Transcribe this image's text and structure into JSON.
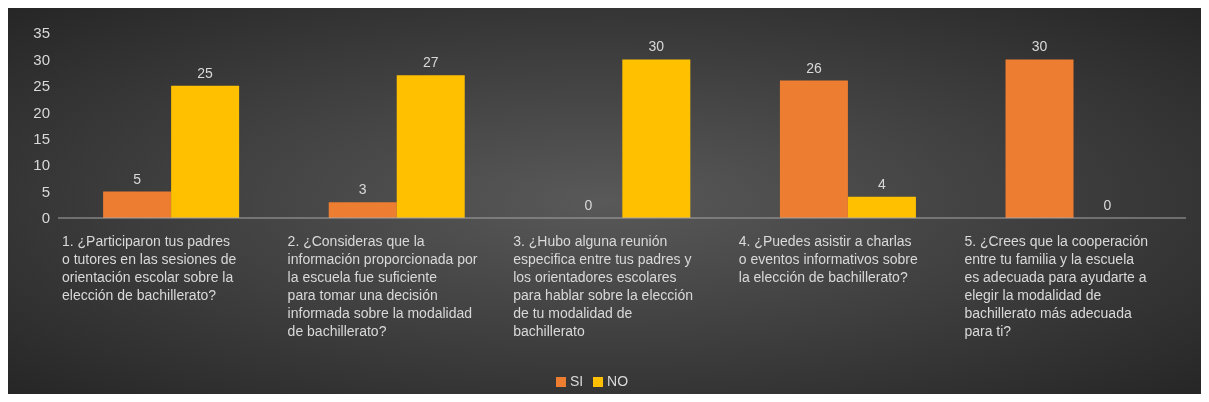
{
  "chart_data": {
    "type": "bar",
    "categories": [
      "1.  ¿Participaron tus padres o tutores en las sesiones de orientación escolar sobre la elección de bachillerato?",
      "2. ¿Consideras que la información proporcionada por la escuela fue suficiente para tomar una decisión informada sobre la modalidad de bachillerato?",
      "3. ¿Hubo alguna reunión especifica entre tus padres y los orientadores escolares para hablar sobre la elección de tu modalidad de bachillerato",
      "4. ¿Puedes asistir a charlas o eventos informativos sobre la elección de bachillerato?",
      "5.  ¿Crees que la cooperación entre tu familia y la escuela es adecuada para ayudarte a elegir la modalidad de bachillerato más adecuada para ti?"
    ],
    "series": [
      {
        "name": "SI",
        "color": "#ed7d31",
        "values": [
          5,
          3,
          0,
          26,
          30
        ]
      },
      {
        "name": "NO",
        "color": "#ffc000",
        "values": [
          25,
          27,
          30,
          4,
          0
        ]
      }
    ],
    "ylim": [
      0,
      35
    ],
    "yticks": [
      0,
      5,
      10,
      15,
      20,
      25,
      30,
      35
    ],
    "data_labels": true,
    "legend": "bottom",
    "grid": false
  }
}
